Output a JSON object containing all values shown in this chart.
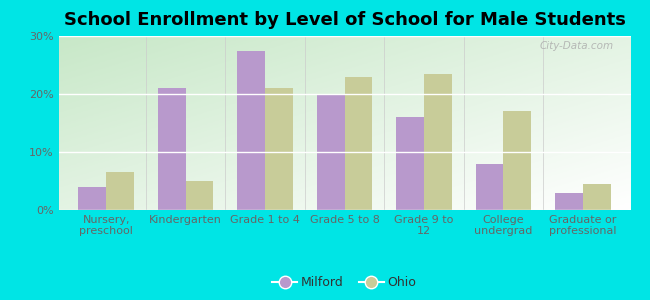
{
  "title": "School Enrollment by Level of School for Male Students",
  "categories": [
    "Nursery,\npreschool",
    "Kindergarten",
    "Grade 1 to 4",
    "Grade 5 to 8",
    "Grade 9 to\n12",
    "College\nundergrad",
    "Graduate or\nprofessional"
  ],
  "milford_values": [
    4.0,
    21.0,
    27.5,
    20.0,
    16.0,
    8.0,
    3.0
  ],
  "ohio_values": [
    6.5,
    5.0,
    21.0,
    23.0,
    23.5,
    17.0,
    4.5
  ],
  "milford_color": "#b899cc",
  "ohio_color": "#c8cc99",
  "background_color": "#00e5e5",
  "plot_bg_top_right": "#ffffff",
  "plot_bg_bottom_left": "#c8e8c8",
  "ylim": [
    0,
    30
  ],
  "yticks": [
    0,
    10,
    20,
    30
  ],
  "ytick_labels": [
    "0%",
    "10%",
    "20%",
    "30%"
  ],
  "bar_width": 0.35,
  "title_fontsize": 13,
  "tick_fontsize": 8,
  "legend_labels": [
    "Milford",
    "Ohio"
  ],
  "watermark": "City-Data.com"
}
